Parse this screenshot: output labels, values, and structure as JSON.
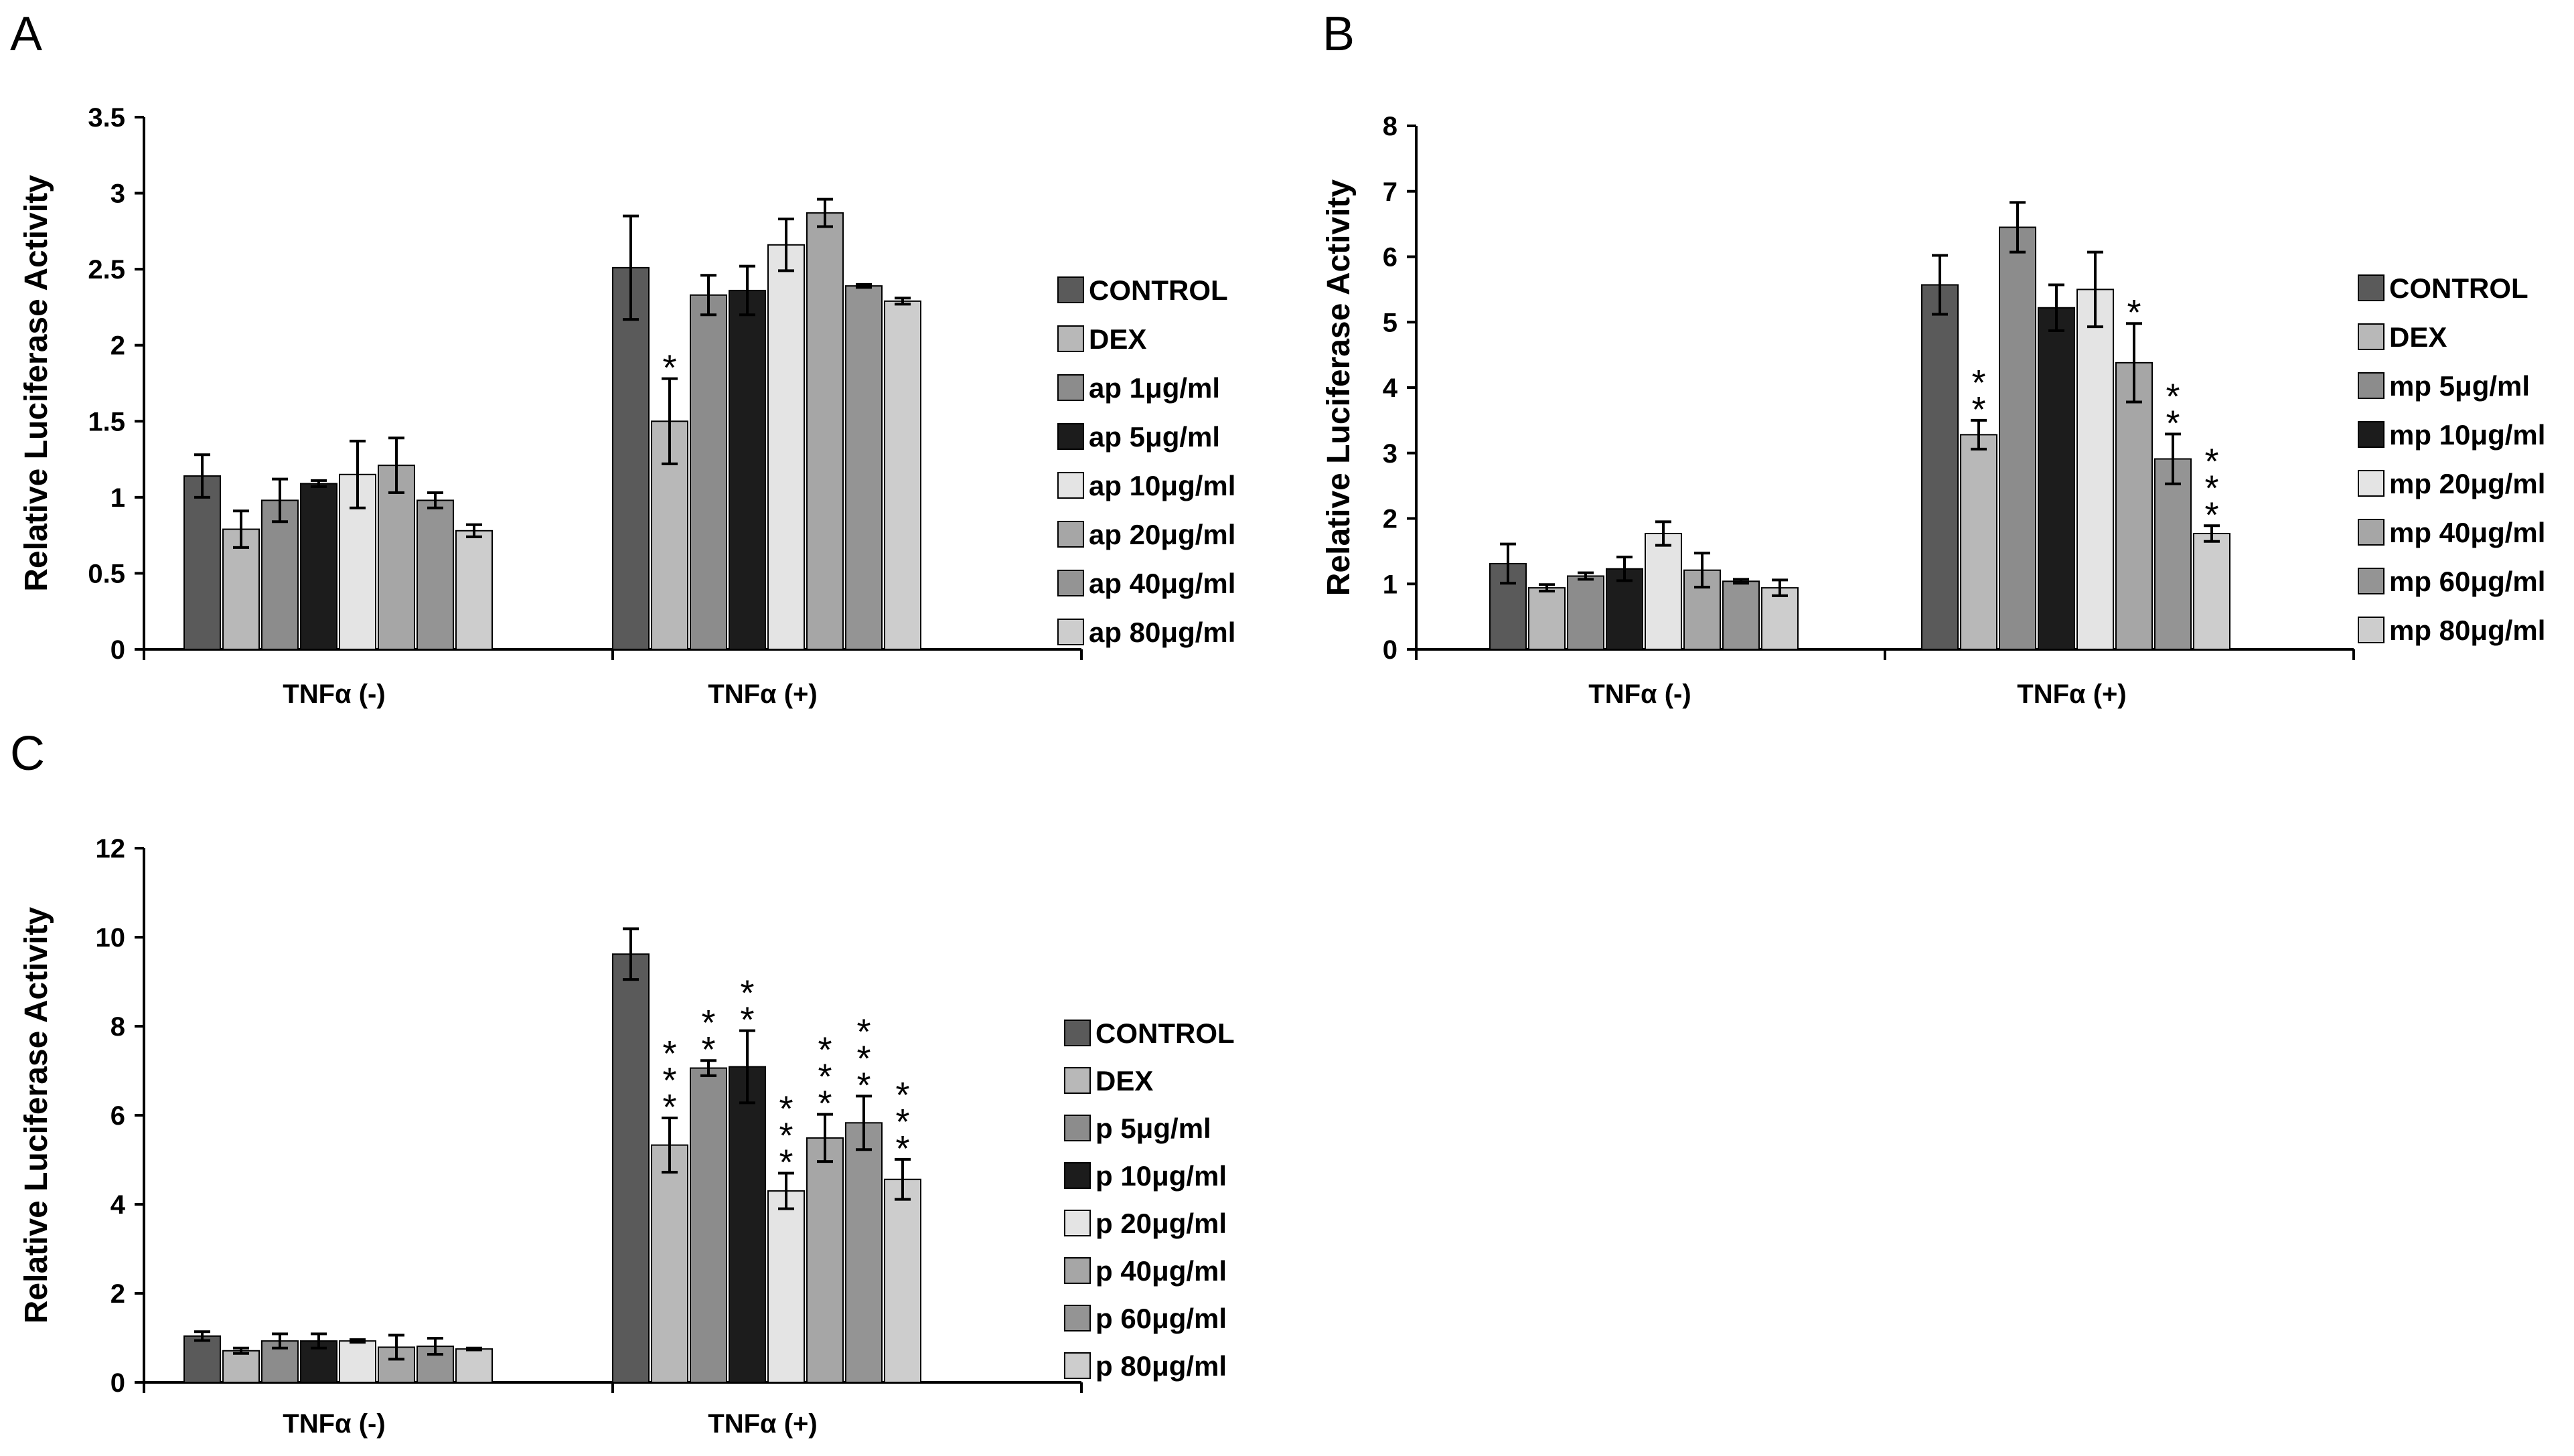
{
  "chart_data": [
    {
      "panel": "A",
      "type": "bar",
      "ylabel": "Relative Luciferase Activity",
      "xlabel": "",
      "ylim": [
        0,
        3.5
      ],
      "yticks": [
        "0",
        "0.5",
        "1",
        "1.5",
        "2",
        "2.5",
        "3",
        "3.5"
      ],
      "categories": [
        "TNFα (-)",
        "TNFα (+)"
      ],
      "series": [
        {
          "name": "CONTROL",
          "color": "#5a5a5a",
          "values": [
            1.14,
            2.51
          ],
          "errors": [
            0.14,
            0.34
          ],
          "stars": [
            "",
            ""
          ]
        },
        {
          "name": "DEX",
          "color": "#b8b8b8",
          "values": [
            0.79,
            1.5
          ],
          "errors": [
            0.12,
            0.28
          ],
          "stars": [
            "",
            "*"
          ]
        },
        {
          "name": "ap 1μg/ml",
          "color": "#8c8c8c",
          "values": [
            0.98,
            2.33
          ],
          "errors": [
            0.14,
            0.13
          ],
          "stars": [
            "",
            ""
          ]
        },
        {
          "name": "ap 5μg/ml",
          "color": "#1c1c1c",
          "values": [
            1.09,
            2.36
          ],
          "errors": [
            0.02,
            0.16
          ],
          "stars": [
            "",
            ""
          ]
        },
        {
          "name": "ap 10μg/ml",
          "color": "#e4e4e4",
          "values": [
            1.15,
            2.66
          ],
          "errors": [
            0.22,
            0.17
          ],
          "stars": [
            "",
            ""
          ]
        },
        {
          "name": "ap 20μg/ml",
          "color": "#a6a6a6",
          "values": [
            1.21,
            2.87
          ],
          "errors": [
            0.18,
            0.09
          ],
          "stars": [
            "",
            ""
          ]
        },
        {
          "name": "ap 40μg/ml",
          "color": "#949494",
          "values": [
            0.98,
            2.39
          ],
          "errors": [
            0.05,
            0.01
          ],
          "stars": [
            "",
            ""
          ]
        },
        {
          "name": "ap 80μg/ml",
          "color": "#cdcdcd",
          "values": [
            0.78,
            2.29
          ],
          "errors": [
            0.04,
            0.02
          ],
          "stars": [
            "",
            ""
          ]
        }
      ]
    },
    {
      "panel": "B",
      "type": "bar",
      "ylabel": "Relative Luciferase Activity",
      "xlabel": "",
      "ylim": [
        0,
        8
      ],
      "yticks": [
        "0",
        "1",
        "2",
        "3",
        "4",
        "5",
        "6",
        "7",
        "8"
      ],
      "categories": [
        "TNFα (-)",
        "TNFα (+)"
      ],
      "series": [
        {
          "name": "CONTROL",
          "color": "#5a5a5a",
          "values": [
            1.31,
            5.57
          ],
          "errors": [
            0.3,
            0.45
          ],
          "stars": [
            "",
            ""
          ]
        },
        {
          "name": "DEX",
          "color": "#b8b8b8",
          "values": [
            0.94,
            3.28
          ],
          "errors": [
            0.05,
            0.22
          ],
          "stars": [
            "",
            "**"
          ]
        },
        {
          "name": "mp 5μg/ml",
          "color": "#8c8c8c",
          "values": [
            1.12,
            6.45
          ],
          "errors": [
            0.05,
            0.38
          ],
          "stars": [
            "",
            ""
          ]
        },
        {
          "name": "mp 10μg/ml",
          "color": "#1c1c1c",
          "values": [
            1.23,
            5.22
          ],
          "errors": [
            0.18,
            0.35
          ],
          "stars": [
            "",
            ""
          ]
        },
        {
          "name": "mp 20μg/ml",
          "color": "#e4e4e4",
          "values": [
            1.77,
            5.5
          ],
          "errors": [
            0.18,
            0.57
          ],
          "stars": [
            "",
            ""
          ]
        },
        {
          "name": "mp 40μg/ml",
          "color": "#a6a6a6",
          "values": [
            1.21,
            4.38
          ],
          "errors": [
            0.26,
            0.6
          ],
          "stars": [
            "",
            "*"
          ]
        },
        {
          "name": "mp 60μg/ml",
          "color": "#949494",
          "values": [
            1.04,
            2.91
          ],
          "errors": [
            0.03,
            0.38
          ],
          "stars": [
            "",
            "**"
          ]
        },
        {
          "name": "mp 80μg/ml",
          "color": "#cdcdcd",
          "values": [
            0.94,
            1.77
          ],
          "errors": [
            0.12,
            0.12
          ],
          "stars": [
            "",
            "***"
          ]
        }
      ]
    },
    {
      "panel": "C",
      "type": "bar",
      "ylabel": "Relative Luciferase Activity",
      "xlabel": "",
      "ylim": [
        0,
        12
      ],
      "yticks": [
        "0",
        "2",
        "4",
        "6",
        "8",
        "10",
        "12"
      ],
      "categories": [
        "TNFα (-)",
        "TNFα (+)"
      ],
      "series": [
        {
          "name": "CONTROL",
          "color": "#5a5a5a",
          "values": [
            1.04,
            9.62
          ],
          "errors": [
            0.1,
            0.57
          ],
          "stars": [
            "",
            ""
          ]
        },
        {
          "name": "DEX",
          "color": "#b8b8b8",
          "values": [
            0.71,
            5.33
          ],
          "errors": [
            0.06,
            0.61
          ],
          "stars": [
            "",
            "***"
          ]
        },
        {
          "name": "p 5μg/ml",
          "color": "#8c8c8c",
          "values": [
            0.93,
            7.06
          ],
          "errors": [
            0.16,
            0.17
          ],
          "stars": [
            "",
            "**"
          ]
        },
        {
          "name": "p 10μg/ml",
          "color": "#1c1c1c",
          "values": [
            0.93,
            7.09
          ],
          "errors": [
            0.16,
            0.81
          ],
          "stars": [
            "",
            "**"
          ]
        },
        {
          "name": "p 20μg/ml",
          "color": "#e4e4e4",
          "values": [
            0.93,
            4.3
          ],
          "errors": [
            0.03,
            0.4
          ],
          "stars": [
            "",
            "***"
          ]
        },
        {
          "name": "p 40μg/ml",
          "color": "#a6a6a6",
          "values": [
            0.79,
            5.49
          ],
          "errors": [
            0.27,
            0.53
          ],
          "stars": [
            "",
            "***"
          ]
        },
        {
          "name": "p 60μg/ml",
          "color": "#949494",
          "values": [
            0.81,
            5.83
          ],
          "errors": [
            0.18,
            0.6
          ],
          "stars": [
            "",
            "***"
          ]
        },
        {
          "name": "p 80μg/ml",
          "color": "#cdcdcd",
          "values": [
            0.75,
            4.56
          ],
          "errors": [
            0.02,
            0.45
          ],
          "stars": [
            "",
            "***"
          ]
        }
      ]
    }
  ]
}
